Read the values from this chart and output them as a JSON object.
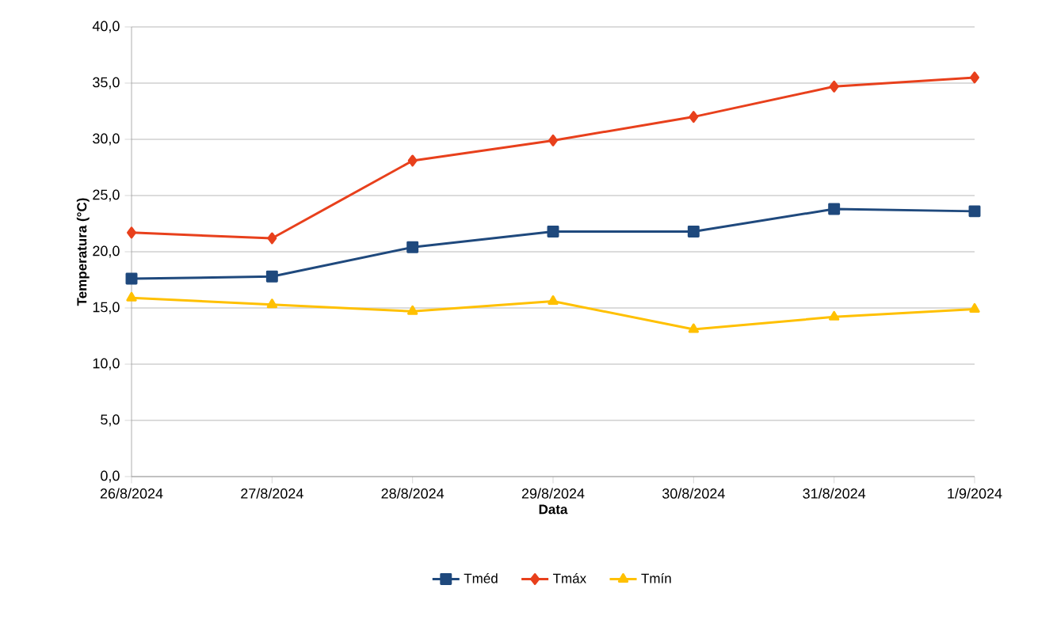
{
  "chart_data": {
    "type": "line",
    "xlabel": "Data",
    "ylabel": "Temperatura (°C)",
    "categories": [
      "26/8/2024",
      "27/8/2024",
      "28/8/2024",
      "29/8/2024",
      "30/8/2024",
      "31/8/2024",
      "1/9/2024"
    ],
    "series": [
      {
        "name": "Tméd",
        "color": "#1f497d",
        "marker": "square",
        "values": [
          17.6,
          17.8,
          20.4,
          21.8,
          21.8,
          23.8,
          23.6
        ]
      },
      {
        "name": "Tmáx",
        "color": "#e8401c",
        "marker": "diamond",
        "values": [
          21.7,
          21.2,
          28.1,
          29.9,
          32.0,
          34.7,
          35.5
        ]
      },
      {
        "name": "Tmín",
        "color": "#ffc000",
        "marker": "triangle",
        "values": [
          15.9,
          15.3,
          14.7,
          15.6,
          13.1,
          14.2,
          14.9
        ]
      }
    ],
    "ylim": [
      0,
      40
    ],
    "yticks": [
      {
        "value": 0,
        "label": "0,0"
      },
      {
        "value": 5,
        "label": "5,0"
      },
      {
        "value": 10,
        "label": "10,0"
      },
      {
        "value": 15,
        "label": "15,0"
      },
      {
        "value": 20,
        "label": "20,0"
      },
      {
        "value": 25,
        "label": "25,0"
      },
      {
        "value": 30,
        "label": "30,0"
      },
      {
        "value": 35,
        "label": "35,0"
      },
      {
        "value": 40,
        "label": "40,0"
      }
    ],
    "grid": "y",
    "legend": "bottom",
    "line_style": "solid"
  }
}
